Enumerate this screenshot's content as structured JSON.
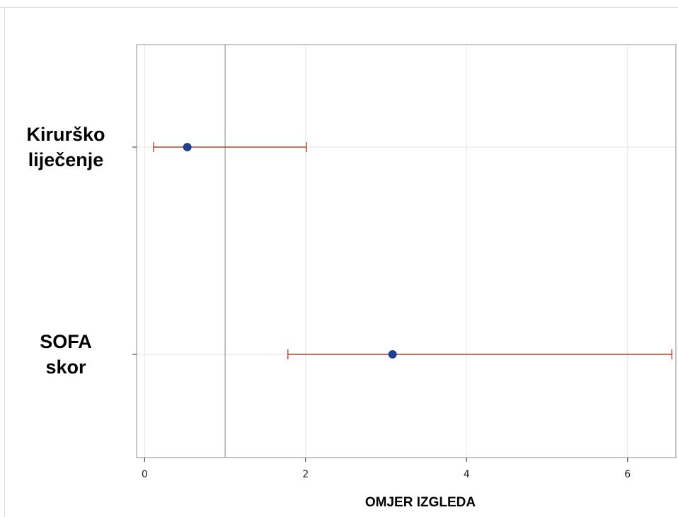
{
  "chart_data": {
    "type": "forest",
    "title": "",
    "xlabel": "OMJER IZGLEDA",
    "ylabel": "",
    "xlim": [
      -0.1,
      6.6
    ],
    "xticks": [
      0,
      2,
      4,
      6
    ],
    "xtick_labels": [
      "0",
      "2",
      "4",
      "6"
    ],
    "reference_line": 1,
    "grid": true,
    "categories": [
      {
        "lines": [
          "Kirurško",
          "liječenje"
        ]
      },
      {
        "lines": [
          "SOFA",
          "skor"
        ]
      }
    ],
    "points": [
      {
        "estimate": 0.53,
        "lower": 0.11,
        "upper": 2.01
      },
      {
        "estimate": 3.08,
        "lower": 1.78,
        "upper": 6.55
      }
    ],
    "colors": {
      "point": "#1f3f99",
      "interval": "#b5432a",
      "reference": "#9a9a9a",
      "grid": "#e6e6e6",
      "border": "#8c8c8c"
    }
  }
}
